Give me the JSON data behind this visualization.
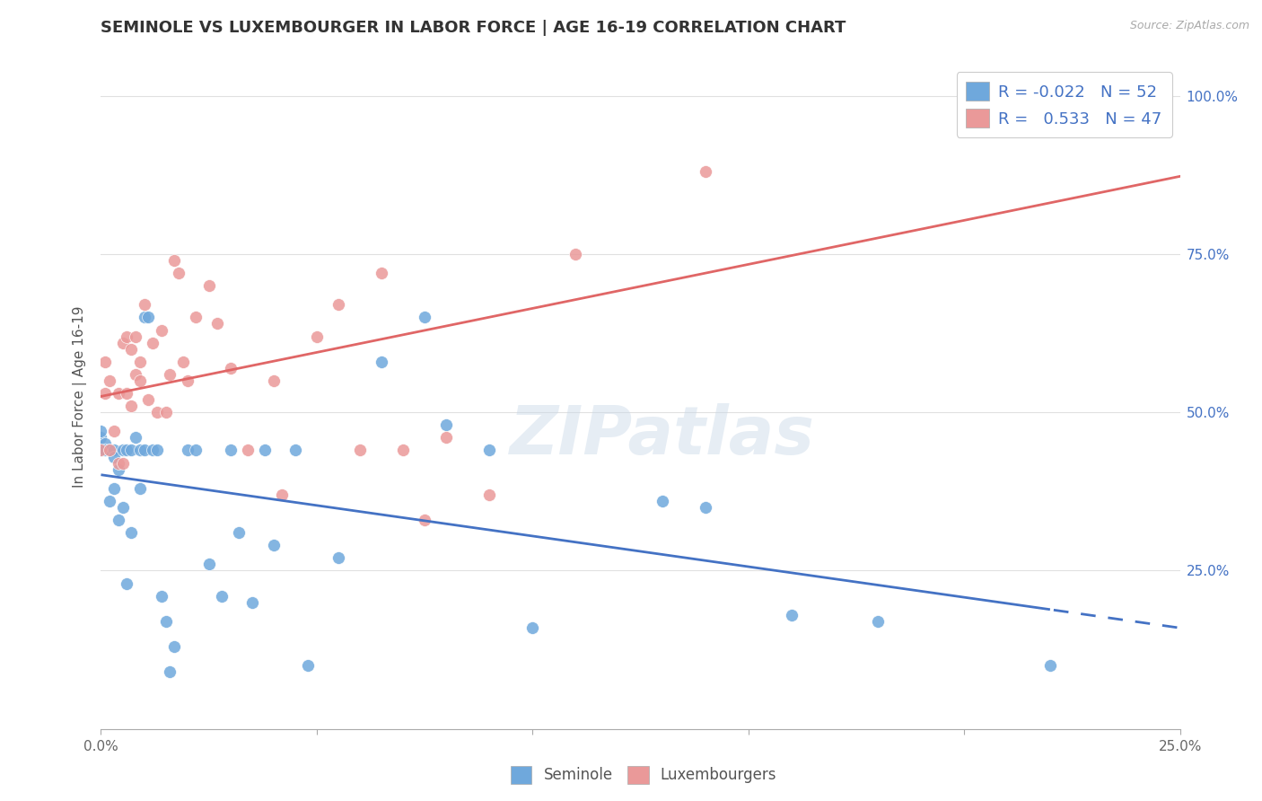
{
  "title": "SEMINOLE VS LUXEMBOURGER IN LABOR FORCE | AGE 16-19 CORRELATION CHART",
  "source": "Source: ZipAtlas.com",
  "ylabel": "In Labor Force | Age 16-19",
  "x_min": 0.0,
  "x_max": 0.25,
  "y_min": 0.0,
  "y_max": 1.05,
  "seminole_color": "#6fa8dc",
  "luxembourger_color": "#ea9999",
  "sem_line_color": "#4472c4",
  "lux_line_color": "#e06666",
  "legend_R_seminole": "-0.022",
  "legend_N_seminole": "52",
  "legend_R_luxembourger": "0.533",
  "legend_N_luxembourger": "47",
  "seminole_x": [
    0.0,
    0.0,
    0.0,
    0.001,
    0.001,
    0.002,
    0.002,
    0.003,
    0.003,
    0.003,
    0.004,
    0.004,
    0.005,
    0.005,
    0.006,
    0.006,
    0.007,
    0.007,
    0.008,
    0.009,
    0.009,
    0.01,
    0.01,
    0.011,
    0.012,
    0.013,
    0.014,
    0.015,
    0.016,
    0.017,
    0.02,
    0.022,
    0.025,
    0.028,
    0.03,
    0.032,
    0.035,
    0.038,
    0.04,
    0.045,
    0.048,
    0.055,
    0.065,
    0.075,
    0.08,
    0.09,
    0.1,
    0.13,
    0.14,
    0.16,
    0.18,
    0.22
  ],
  "seminole_y": [
    0.44,
    0.46,
    0.47,
    0.45,
    0.44,
    0.44,
    0.36,
    0.44,
    0.43,
    0.38,
    0.33,
    0.41,
    0.44,
    0.35,
    0.44,
    0.23,
    0.31,
    0.44,
    0.46,
    0.44,
    0.38,
    0.44,
    0.65,
    0.65,
    0.44,
    0.44,
    0.21,
    0.17,
    0.09,
    0.13,
    0.44,
    0.44,
    0.26,
    0.21,
    0.44,
    0.31,
    0.2,
    0.44,
    0.29,
    0.44,
    0.1,
    0.27,
    0.58,
    0.65,
    0.48,
    0.44,
    0.16,
    0.36,
    0.35,
    0.18,
    0.17,
    0.1
  ],
  "luxembourger_x": [
    0.0,
    0.001,
    0.001,
    0.002,
    0.002,
    0.003,
    0.004,
    0.004,
    0.005,
    0.005,
    0.006,
    0.006,
    0.007,
    0.007,
    0.008,
    0.008,
    0.009,
    0.009,
    0.01,
    0.011,
    0.012,
    0.013,
    0.014,
    0.015,
    0.016,
    0.017,
    0.018,
    0.019,
    0.02,
    0.022,
    0.025,
    0.027,
    0.03,
    0.034,
    0.04,
    0.042,
    0.05,
    0.055,
    0.06,
    0.065,
    0.07,
    0.075,
    0.08,
    0.09,
    0.11,
    0.14,
    0.22
  ],
  "luxembourger_y": [
    0.44,
    0.58,
    0.53,
    0.44,
    0.55,
    0.47,
    0.42,
    0.53,
    0.61,
    0.42,
    0.53,
    0.62,
    0.6,
    0.51,
    0.56,
    0.62,
    0.58,
    0.55,
    0.67,
    0.52,
    0.61,
    0.5,
    0.63,
    0.5,
    0.56,
    0.74,
    0.72,
    0.58,
    0.55,
    0.65,
    0.7,
    0.64,
    0.57,
    0.44,
    0.55,
    0.37,
    0.62,
    0.67,
    0.44,
    0.72,
    0.44,
    0.33,
    0.46,
    0.37,
    0.75,
    0.88,
    1.01
  ],
  "background_color": "#ffffff",
  "grid_color": "#e0e0e0",
  "watermark": "ZIPatlas"
}
